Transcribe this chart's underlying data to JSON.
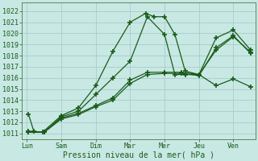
{
  "xlabel": "Pression niveau de la mer( hPa )",
  "bg_color": "#c8e8e4",
  "grid_color": "#a8ccc8",
  "line_color": "#1a5c1a",
  "xtick_labels": [
    "Lun",
    "Sam",
    "Dim",
    "Mar",
    "Mer",
    "Jeu",
    "Ven"
  ],
  "xtick_positions": [
    0,
    1,
    2,
    3,
    4,
    5,
    6
  ],
  "xlim": [
    -0.15,
    6.65
  ],
  "ylim": [
    1010.5,
    1022.8
  ],
  "ytick_vals": [
    1011,
    1012,
    1013,
    1014,
    1015,
    1016,
    1017,
    1018,
    1019,
    1020,
    1021,
    1022
  ],
  "series": [
    {
      "x": [
        0.05,
        0.2,
        0.45,
        1.0,
        1.5,
        2.0,
        2.5,
        3.0,
        3.45,
        3.7,
        4.0,
        4.3,
        4.6,
        5.0,
        5.5,
        6.0,
        6.5
      ],
      "y": [
        1012.7,
        1011.2,
        1011.1,
        1012.6,
        1013.3,
        1015.3,
        1018.4,
        1021.0,
        1021.8,
        1021.5,
        1021.5,
        1019.9,
        1016.6,
        1016.3,
        1015.3,
        1015.9,
        1015.2
      ]
    },
    {
      "x": [
        0.05,
        0.5,
        1.0,
        1.5,
        2.0,
        2.5,
        3.0,
        3.5,
        4.0,
        4.3,
        4.6,
        5.0,
        5.5,
        6.0,
        6.5
      ],
      "y": [
        1011.2,
        1011.1,
        1012.5,
        1013.0,
        1014.5,
        1016.0,
        1017.5,
        1021.5,
        1019.9,
        1016.3,
        1016.3,
        1016.3,
        1019.6,
        1020.3,
        1018.5
      ]
    },
    {
      "x": [
        0.05,
        0.5,
        1.0,
        1.5,
        2.0,
        2.5,
        3.0,
        3.5,
        4.0,
        4.5,
        5.0,
        5.5,
        6.0,
        6.5
      ],
      "y": [
        1011.1,
        1011.1,
        1012.4,
        1012.8,
        1013.5,
        1014.2,
        1015.8,
        1016.5,
        1016.5,
        1016.5,
        1016.3,
        1018.5,
        1019.7,
        1018.3
      ]
    },
    {
      "x": [
        0.05,
        0.5,
        1.0,
        1.5,
        2.0,
        2.5,
        3.0,
        3.5,
        4.0,
        4.5,
        5.0,
        5.5,
        6.0,
        6.5
      ],
      "y": [
        1011.1,
        1011.1,
        1012.3,
        1012.7,
        1013.4,
        1014.0,
        1015.5,
        1016.3,
        1016.4,
        1016.4,
        1016.2,
        1018.7,
        1019.8,
        1018.2
      ]
    }
  ]
}
